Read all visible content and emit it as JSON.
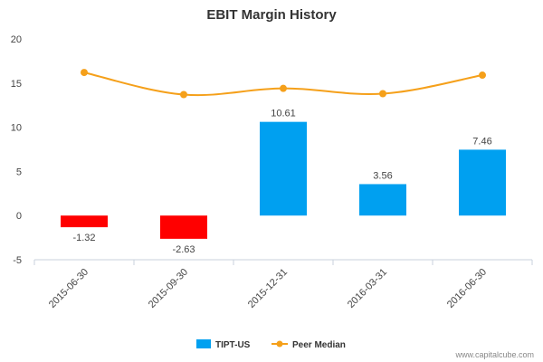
{
  "chart_data": {
    "type": "bar",
    "title": "EBIT Margin History",
    "xlabel": "",
    "ylabel": "",
    "ylim": [
      -5,
      20
    ],
    "yticks": [
      -5,
      0,
      5,
      10,
      15,
      20
    ],
    "categories": [
      "2015-06-30",
      "2015-09-30",
      "2015-12-31",
      "2016-03-31",
      "2016-06-30"
    ],
    "series": [
      {
        "name": "TIPT-US",
        "kind": "bar",
        "values": [
          -1.32,
          -2.63,
          10.61,
          3.56,
          7.46
        ],
        "labels": [
          "-1.32",
          "-2.63",
          "10.61",
          "3.56",
          "7.46"
        ],
        "positive_color": "#00a0f0",
        "negative_color": "#ff0000"
      },
      {
        "name": "Peer Median",
        "kind": "line",
        "values": [
          16.2,
          13.7,
          14.4,
          13.8,
          15.9
        ],
        "color": "#f5a01a"
      }
    ],
    "legend_position": "bottom",
    "grid": false
  },
  "footer": "www.capitalcube.com"
}
